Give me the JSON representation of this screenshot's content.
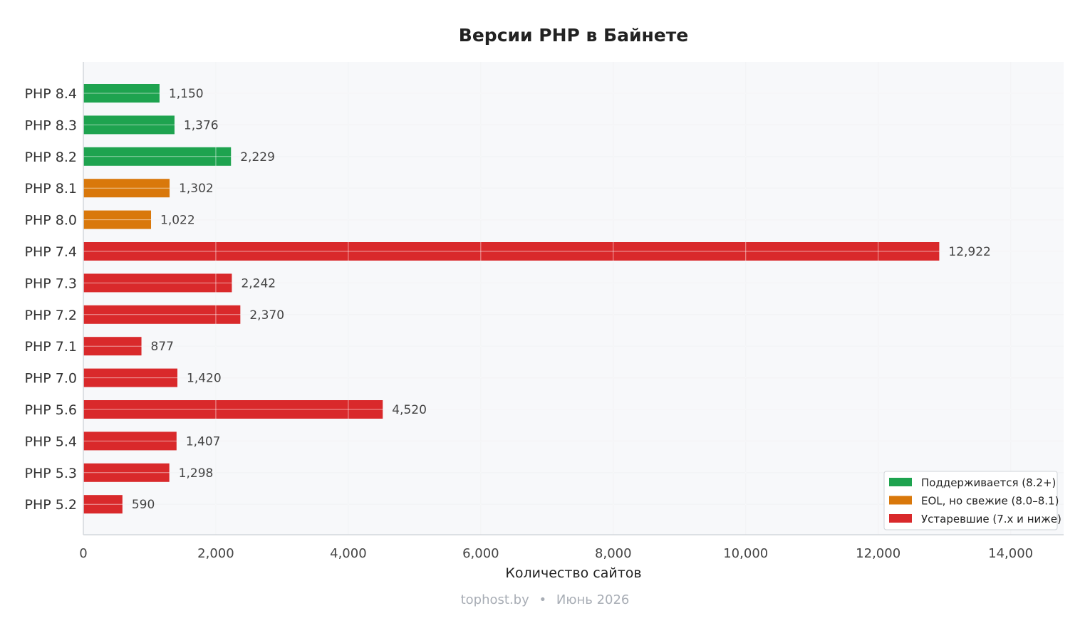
{
  "chart_data": {
    "type": "bar",
    "orientation": "horizontal",
    "title": "Версии PHP в Байнете",
    "xlabel": "Количество сайтов",
    "ylabel": "",
    "xlim": [
      0,
      14800
    ],
    "xticks": [
      0,
      2000,
      4000,
      6000,
      8000,
      10000,
      12000,
      14000
    ],
    "xtick_labels": [
      "0",
      "2,000",
      "4,000",
      "6,000",
      "8,000",
      "10,000",
      "12,000",
      "14,000"
    ],
    "grid": true,
    "legend_position": "bottom-right",
    "categories": [
      "PHP 8.4",
      "PHP 8.3",
      "PHP 8.2",
      "PHP 8.1",
      "PHP 8.0",
      "PHP 7.4",
      "PHP 7.3",
      "PHP 7.2",
      "PHP 7.1",
      "PHP 7.0",
      "PHP 5.6",
      "PHP 5.4",
      "PHP 5.3",
      "PHP 5.2"
    ],
    "values": [
      1150,
      1376,
      2229,
      1302,
      1022,
      12922,
      2242,
      2370,
      877,
      1420,
      4520,
      1407,
      1298,
      590
    ],
    "value_labels": [
      "1,150",
      "1,376",
      "2,229",
      "1,302",
      "1,022",
      "12,922",
      "2,242",
      "2,370",
      "877",
      "1,420",
      "4,520",
      "1,407",
      "1,298",
      "590"
    ],
    "groups": [
      "supported",
      "supported",
      "supported",
      "eol",
      "eol",
      "outdated",
      "outdated",
      "outdated",
      "outdated",
      "outdated",
      "outdated",
      "outdated",
      "outdated",
      "outdated"
    ],
    "legend": [
      {
        "key": "supported",
        "label": "Поддерживается (8.2+)",
        "color": "#1ea34f"
      },
      {
        "key": "eol",
        "label": "EOL, но свежие (8.0–8.1)",
        "color": "#d9780b"
      },
      {
        "key": "outdated",
        "label": "Устаревшие (7.x и ниже)",
        "color": "#d9292b"
      }
    ],
    "footer": {
      "source": "tophost.by",
      "separator": "•",
      "date": "Июнь 2026"
    }
  },
  "colors": {
    "plot_background": "#f7f8fa",
    "grid": "#e6e8ec",
    "axis": "#d4d7dc"
  }
}
